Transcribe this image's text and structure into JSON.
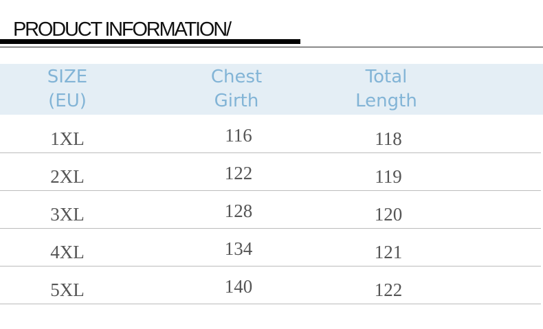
{
  "title": "PRODUCT INFORMATION/",
  "colors": {
    "header_bg": "#e4eef5",
    "header_text": "#82b4d6",
    "cell_text": "#555555"
  },
  "table": {
    "headers": [
      {
        "line1": "SIZE",
        "line2": "(EU)"
      },
      {
        "line1": "Chest",
        "line2": "Girth"
      },
      {
        "line1": "Total",
        "line2": "Length"
      }
    ],
    "rows": [
      [
        "1XL",
        "116",
        "118"
      ],
      [
        "2XL",
        "122",
        "119"
      ],
      [
        "3XL",
        "128",
        "120"
      ],
      [
        "4XL",
        "134",
        "121"
      ],
      [
        "5XL",
        "140",
        "122"
      ]
    ]
  }
}
